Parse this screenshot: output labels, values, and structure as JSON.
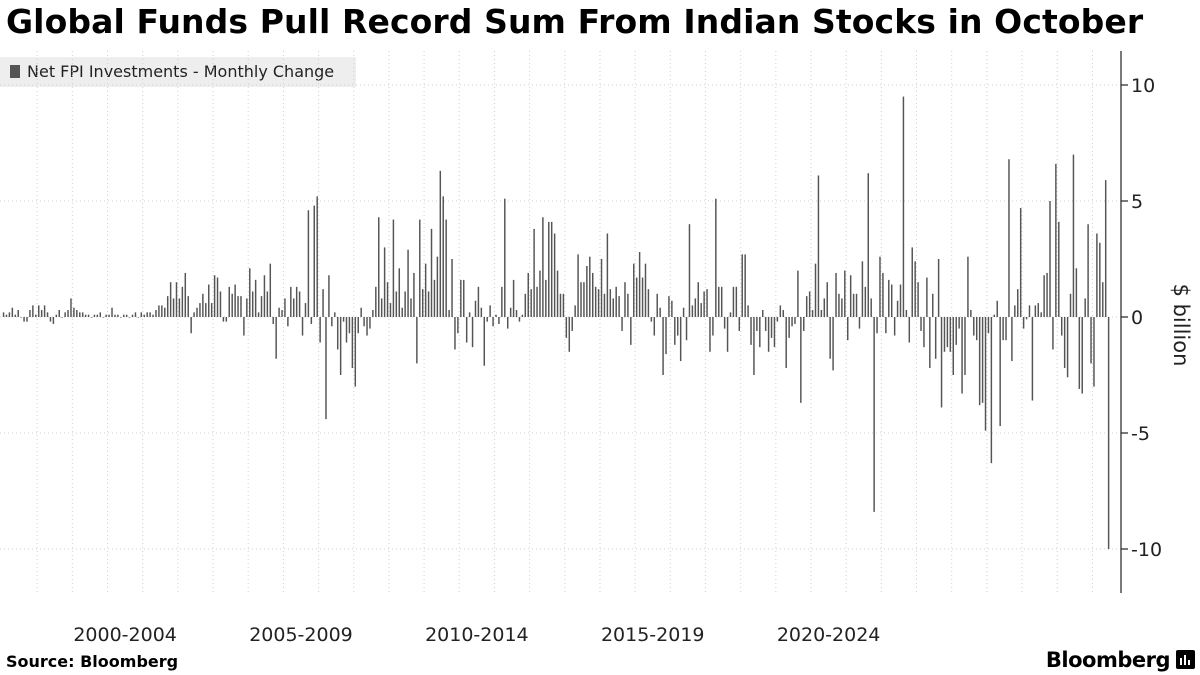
{
  "header": {
    "title": "Global Funds Pull Record Sum From Indian Stocks in October"
  },
  "footer": {
    "source": "Source: Bloomberg",
    "brand": "Bloomberg"
  },
  "brand_icon": "bloomberg-terminal-icon",
  "colors": {
    "bar": "#555555",
    "grid": "#d0d0d0",
    "axis": "#333333",
    "legend_bg": "#eeeeee"
  },
  "chart_data": {
    "type": "bar",
    "title": "Global Funds Pull Record Sum From Indian Stocks in October",
    "legend": [
      "Net FPI Investments - Monthly Change"
    ],
    "ylabel": "$ billion",
    "xlabel": "",
    "ylim": [
      -11.5,
      11.5
    ],
    "yticks": [
      10,
      5,
      0,
      -5,
      -10
    ],
    "ytick_labels": [
      "10",
      "5",
      "0",
      "-5",
      "-10"
    ],
    "xticks": [
      "2000-2004",
      "2005-2009",
      "2010-2014",
      "2015-2019",
      "2020-2024"
    ],
    "start_month": "1999-01",
    "end_month": "2024-10",
    "frequency": "monthly",
    "values": [
      0.2,
      0.1,
      0.2,
      0.4,
      0.1,
      0.3,
      0.0,
      -0.2,
      -0.2,
      0.3,
      0.5,
      0.1,
      0.5,
      0.3,
      0.5,
      0.2,
      -0.2,
      -0.3,
      0.1,
      0.3,
      0.0,
      0.2,
      0.3,
      0.8,
      0.4,
      0.3,
      0.2,
      0.2,
      0.1,
      0.1,
      0.0,
      0.1,
      0.1,
      0.2,
      0.0,
      0.1,
      0.1,
      0.4,
      0.1,
      0.1,
      0.0,
      0.1,
      0.1,
      0.0,
      0.1,
      0.2,
      0.0,
      0.2,
      0.1,
      0.2,
      0.2,
      0.1,
      0.3,
      0.5,
      0.5,
      0.4,
      0.9,
      1.5,
      0.8,
      1.5,
      0.8,
      1.3,
      1.9,
      0.9,
      -0.7,
      0.2,
      0.4,
      0.6,
      1.0,
      0.6,
      1.4,
      0.6,
      1.8,
      1.7,
      1.1,
      -0.2,
      -0.2,
      1.3,
      1.0,
      1.4,
      0.9,
      0.9,
      -0.8,
      0.8,
      2.1,
      1.1,
      1.6,
      0.2,
      0.9,
      1.8,
      1.1,
      2.3,
      -0.3,
      -1.8,
      0.4,
      0.3,
      0.8,
      -0.4,
      1.3,
      0.8,
      1.3,
      1.1,
      -0.8,
      0.6,
      4.6,
      -0.3,
      4.8,
      5.2,
      -1.1,
      1.2,
      -4.4,
      1.8,
      -0.4,
      0.2,
      -1.4,
      -2.5,
      -0.2,
      -1.1,
      -0.7,
      -2.2,
      -3.0,
      -0.7,
      0.4,
      -0.4,
      -0.8,
      -0.5,
      0.3,
      1.3,
      4.3,
      0.8,
      3.0,
      1.5,
      0.6,
      4.2,
      1.1,
      2.1,
      0.4,
      1.1,
      2.9,
      0.8,
      1.9,
      -2.0,
      4.2,
      1.2,
      2.3,
      1.1,
      3.8,
      1.6,
      2.6,
      6.3,
      5.2,
      4.2,
      0.3,
      2.5,
      -1.4,
      -0.7,
      1.6,
      1.6,
      -1.1,
      0.2,
      -1.3,
      0.7,
      1.3,
      0.4,
      -2.1,
      -0.2,
      0.5,
      -0.4,
      0.1,
      -0.3,
      1.3,
      5.1,
      -0.5,
      0.4,
      1.6,
      0.3,
      -0.2,
      0.1,
      1.0,
      1.9,
      1.2,
      3.8,
      1.3,
      2.0,
      4.3,
      1.6,
      4.1,
      4.1,
      3.6,
      2.0,
      1.0,
      1.0,
      -0.9,
      -1.5,
      -0.6,
      0.5,
      2.7,
      1.5,
      1.5,
      2.2,
      2.6,
      1.9,
      1.3,
      1.2,
      2.5,
      1.0,
      3.6,
      1.2,
      0.8,
      1.3,
      0.9,
      -0.6,
      1.5,
      1.0,
      -1.2,
      2.3,
      1.7,
      2.8,
      1.7,
      2.3,
      1.2,
      -0.2,
      -0.8,
      1.0,
      0.4,
      -2.5,
      -1.6,
      0.9,
      0.7,
      -1.2,
      -0.8,
      -1.9,
      0.4,
      -1.0,
      4.0,
      0.5,
      0.8,
      1.5,
      0.6,
      1.1,
      1.2,
      -1.5,
      -0.8,
      5.1,
      1.3,
      1.3,
      -0.5,
      -1.5,
      0.2,
      1.3,
      1.3,
      -0.6,
      2.7,
      2.7,
      0.5,
      -1.2,
      -2.5,
      -0.6,
      -1.3,
      0.3,
      -0.6,
      -1.5,
      -0.9,
      -1.3,
      -0.2,
      0.5,
      0.3,
      -2.2,
      -0.9,
      -0.4,
      -0.3,
      2.0,
      -3.7,
      -0.6,
      0.9,
      1.1,
      0.3,
      2.3,
      6.1,
      0.3,
      0.8,
      1.5,
      -1.8,
      -2.3,
      1.9,
      1.0,
      0.8,
      2.0,
      -1.0,
      1.8,
      1.0,
      1.0,
      -0.5,
      2.4,
      1.3,
      6.2,
      0.8,
      -8.4,
      -0.7,
      2.6,
      1.9,
      -0.7,
      1.6,
      1.4,
      -0.8,
      0.7,
      1.4,
      9.5,
      0.3,
      -1.1,
      3.0,
      2.4,
      1.5,
      -0.6,
      -1.3,
      1.7,
      -2.2,
      1.0,
      -1.8,
      2.5,
      -3.9,
      -1.5,
      -1.3,
      -1.5,
      -2.5,
      -1.2,
      -0.5,
      -3.3,
      -2.5,
      2.6,
      0.3,
      -0.8,
      -1.0,
      -3.8,
      -3.7,
      -4.9,
      -0.7,
      -6.3,
      0.1,
      0.7,
      -4.7,
      -1.0,
      -1.0,
      6.8,
      -1.9,
      0.5,
      1.2,
      4.7,
      -0.5,
      -0.1,
      0.5,
      -3.6,
      0.5,
      0.6,
      0.2,
      1.8,
      1.9,
      5.0,
      -1.4,
      6.6,
      4.1,
      -0.8,
      -2.2,
      -2.6,
      1.0,
      7.0,
      2.1,
      -3.1,
      -3.3,
      0.8,
      4.0,
      -2.0,
      -3.0,
      3.6,
      3.2,
      1.5,
      5.9,
      -10.0
    ]
  }
}
